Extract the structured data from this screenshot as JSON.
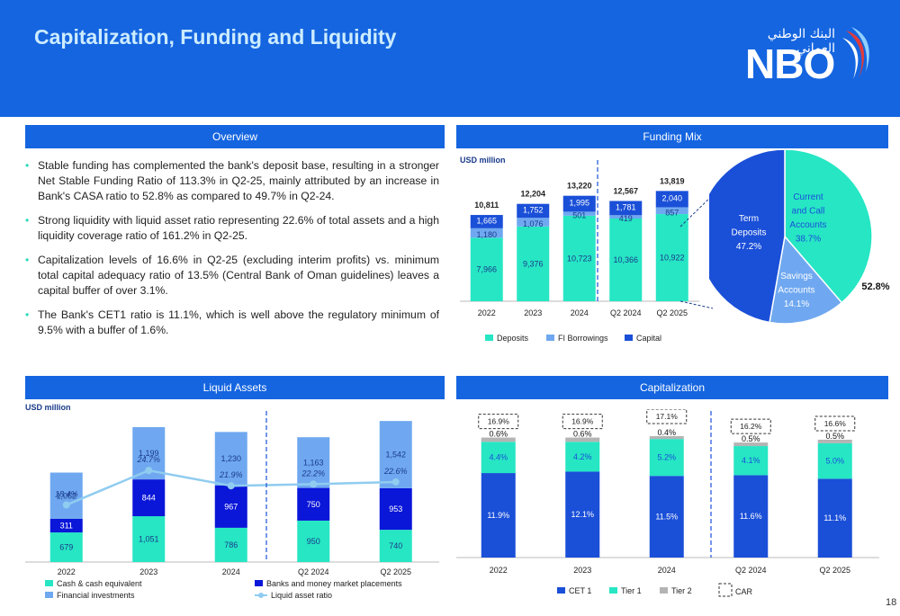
{
  "header": {
    "title": "Capitalization, Funding and Liquidity",
    "logo_text": "NBO",
    "logo_arabic": "البنك الوطني العماني"
  },
  "sections": {
    "overview": "Overview",
    "funding_mix": "Funding Mix",
    "liquid_assets": "Liquid Assets",
    "capitalization": "Capitalization"
  },
  "overview_bullets": [
    "Stable funding has complemented the bank's deposit base, resulting in a stronger Net Stable Funding Ratio of 113.3% in Q2-25, mainly attributed by an increase in Bank's CASA ratio to 52.8% as compared to 49.7% in Q2-24.",
    "Strong liquidity with liquid asset ratio representing 22.6% of total assets and a high liquidity coverage ratio of 161.2% in Q2-25.",
    "Capitalization levels of 16.6% in Q2-25 (excluding interim profits) vs. minimum total capital adequacy ratio of 13.5% (Central Bank of Oman guidelines) leaves a capital buffer of over 3.1%.",
    "The Bank's CET1 ratio is 11.1%, which is well above the regulatory minimum of 9.5% with a buffer of 1.6%."
  ],
  "page_number": "18",
  "chart_data": [
    {
      "type": "bar",
      "id": "funding_mix",
      "unit_label": "USD million",
      "categories": [
        "2022",
        "2023",
        "2024",
        "Q2 2024",
        "Q2 2025"
      ],
      "series": [
        {
          "name": "Deposits",
          "color": "#26e6c4",
          "values": [
            7966,
            9376,
            10723,
            10366,
            10922
          ]
        },
        {
          "name": "FI Borrowings",
          "color": "#6fa8f0",
          "values": [
            1180,
            1076,
            501,
            419,
            857
          ]
        },
        {
          "name": "Capital",
          "color": "#1a4fd8",
          "values": [
            1665,
            1752,
            1995,
            1781,
            2040
          ]
        }
      ],
      "totals": [
        10811,
        12204,
        13220,
        12567,
        13819
      ],
      "value_labels": {
        "Deposits": [
          "7,966",
          "9,376",
          "10,723",
          "10,366",
          "10,922"
        ],
        "FI Borrowings": [
          "1,180",
          "1,076",
          "501",
          "419",
          "857"
        ],
        "Capital": [
          "1,665",
          "1,752",
          "1,995",
          "1,781",
          "2,040"
        ]
      },
      "total_labels": [
        "10,811",
        "12,204",
        "13,220",
        "12,567",
        "13,819"
      ],
      "ylim": [
        0,
        16000
      ]
    },
    {
      "type": "pie",
      "id": "deposit_mix",
      "slices": [
        {
          "label": "Current and Call Accounts",
          "value": 38.7,
          "value_label": "38.7%",
          "color": "#26e6c4"
        },
        {
          "label": "Savings Accounts",
          "value": 14.1,
          "value_label": "14.1%",
          "color": "#6fa8f0"
        },
        {
          "label": "Term Deposits",
          "value": 47.2,
          "value_label": "47.2%",
          "color": "#1a4fd8"
        }
      ],
      "slice_texts": {
        "current": [
          "Current",
          "and Call",
          "Accounts",
          "38.7%"
        ],
        "savings": [
          "Savings",
          "Accounts",
          "14.1%"
        ],
        "term": [
          "Term",
          "Deposits",
          "47.2%"
        ]
      },
      "casa_label": "52.8%"
    },
    {
      "type": "bar",
      "id": "liquid_assets",
      "unit_label": "USD million",
      "categories": [
        "2022",
        "2023",
        "2024",
        "Q2 2024",
        "Q2 2025"
      ],
      "series": [
        {
          "name": "Cash & cash equivalent",
          "color": "#26e6c4",
          "values": [
            679,
            1051,
            786,
            950,
            740
          ]
        },
        {
          "name": "Banks and money market placements",
          "color": "#0a16d8",
          "values": [
            311,
            844,
            967,
            750,
            953
          ]
        },
        {
          "name": "Financial investments",
          "color": "#6fa8f0",
          "values": [
            1062,
            1199,
            1230,
            1163,
            1542
          ]
        }
      ],
      "value_labels": {
        "Cash & cash equivalent": [
          "679",
          "1,051",
          "786",
          "950",
          "740"
        ],
        "Banks and money market placements": [
          "311",
          "844",
          "967",
          "750",
          "953"
        ],
        "Financial investments": [
          "1,062",
          "1,199",
          "1,230",
          "1,163",
          "1,542"
        ]
      },
      "line": {
        "name": "Liquid asset ratio",
        "color": "#90ccf0",
        "values": [
          18.4,
          24.7,
          21.9,
          22.2,
          22.6
        ],
        "labels": [
          "18.4%",
          "24.7%",
          "21.9%",
          "22.2%",
          "22.6%"
        ]
      },
      "ylim": [
        0,
        3300
      ]
    },
    {
      "type": "bar",
      "id": "capitalization",
      "categories": [
        "2022",
        "2023",
        "2024",
        "Q2 2024",
        "Q2 2025"
      ],
      "series": [
        {
          "name": "CET 1",
          "color": "#1a4fd8",
          "values": [
            11.9,
            12.1,
            11.5,
            11.6,
            11.1
          ],
          "labels": [
            "11.9%",
            "12.1%",
            "11.5%",
            "11.6%",
            "11.1%"
          ]
        },
        {
          "name": "Tier 1",
          "color": "#26e6c4",
          "values": [
            4.4,
            4.2,
            5.2,
            4.1,
            5.0
          ],
          "labels": [
            "4.4%",
            "4.2%",
            "5.2%",
            "4.1%",
            "5.0%"
          ]
        },
        {
          "name": "Tier 2",
          "color": "#b4b4b4",
          "values": [
            0.6,
            0.6,
            0.4,
            0.5,
            0.5
          ],
          "labels": [
            "0.6%",
            "0.6%",
            "0.4%",
            "0.5%",
            "0.5%"
          ]
        }
      ],
      "car": {
        "name": "CAR",
        "values": [
          16.9,
          16.9,
          17.1,
          16.2,
          16.6
        ],
        "labels": [
          "16.9%",
          "16.9%",
          "17.1%",
          "16.2%",
          "16.6%"
        ]
      },
      "ylim": [
        0,
        19
      ]
    }
  ]
}
